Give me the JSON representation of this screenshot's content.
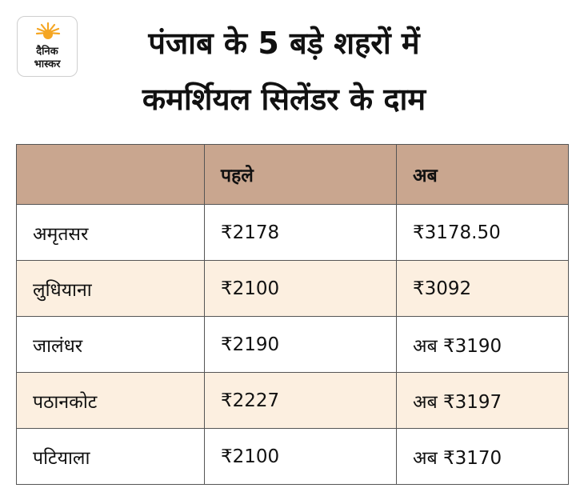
{
  "logo": {
    "line1": "दैनिक",
    "line2": "भास्कर"
  },
  "title": {
    "line1": "पंजाब के 5 बड़े शहरों में",
    "line2": "कमर्शियल सिलेंडर के दाम"
  },
  "table": {
    "headers": [
      "",
      "पहले",
      "अब"
    ],
    "rows": [
      [
        "अमृतसर",
        "₹2178",
        "₹3178.50"
      ],
      [
        "लुधियाना",
        "₹2100",
        "₹3092"
      ],
      [
        "जालंधर",
        "₹2190",
        "अब ₹3190"
      ],
      [
        "पठानकोट",
        "₹2227",
        "अब ₹3197"
      ],
      [
        "पटियाला",
        "₹2100",
        "अब ₹3170"
      ]
    ]
  },
  "colors": {
    "header_bg": "#c9a68f",
    "stripe_bg": "#fcefe0",
    "logo_sun": "#f5a623"
  }
}
